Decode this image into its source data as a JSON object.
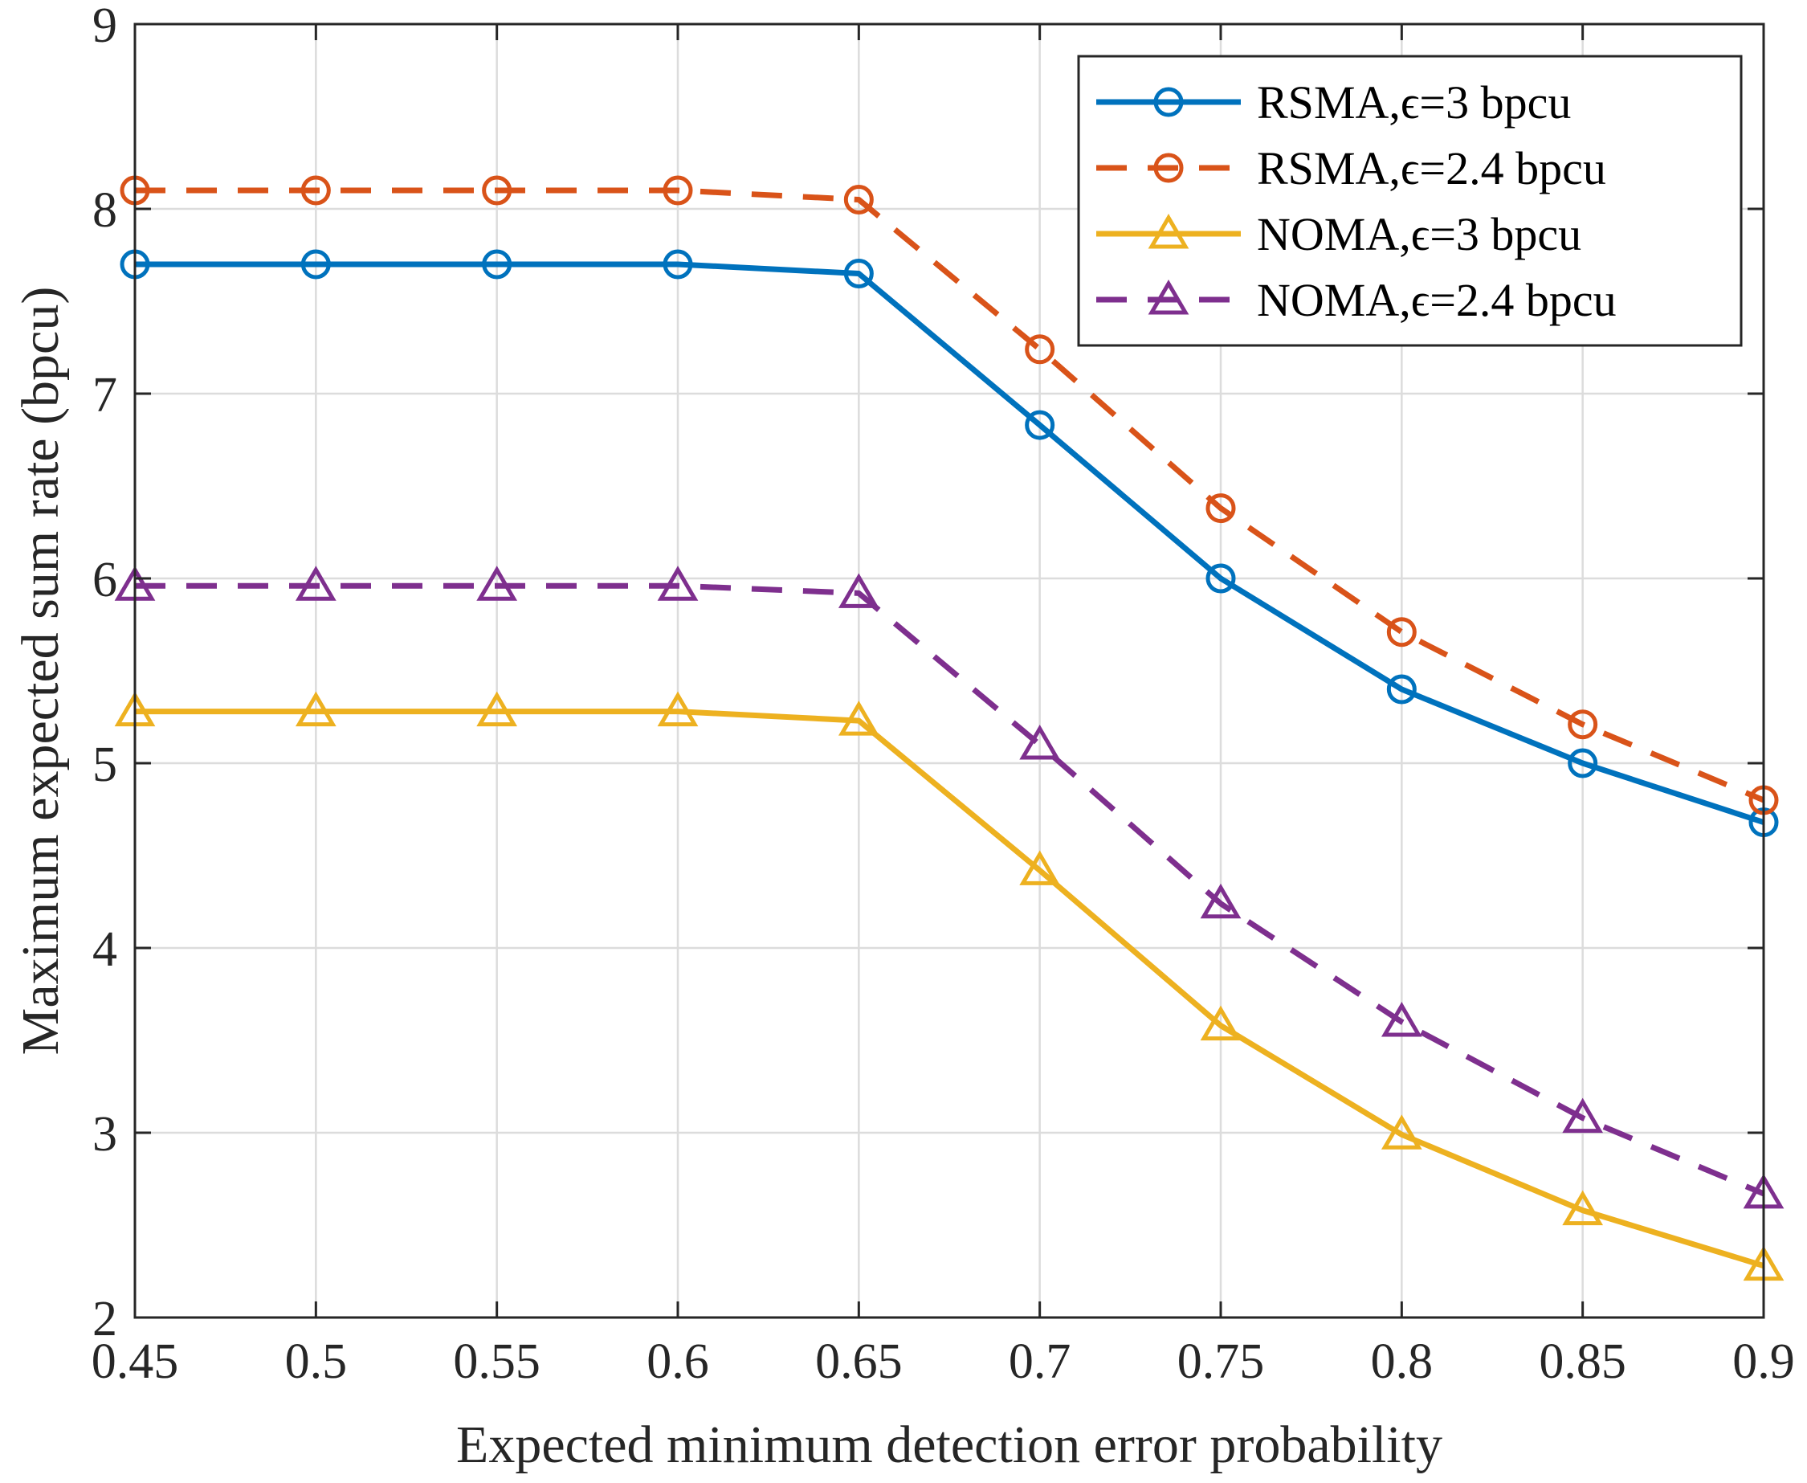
{
  "chart_data": {
    "type": "line",
    "title": "",
    "xlabel": "Expected minimum detection error probability",
    "ylabel": "Maximum expected sum rate (bpcu)",
    "x": [
      0.45,
      0.5,
      0.55,
      0.6,
      0.65,
      0.7,
      0.75,
      0.8,
      0.85,
      0.9
    ],
    "x_tick_labels": [
      "0.45",
      "0.5",
      "0.55",
      "0.6",
      "0.65",
      "0.7",
      "0.75",
      "0.8",
      "0.85",
      "0.9"
    ],
    "y_ticks": [
      2,
      3,
      4,
      5,
      6,
      7,
      8,
      9
    ],
    "y_tick_labels": [
      "2",
      "3",
      "4",
      "5",
      "6",
      "7",
      "8",
      "9"
    ],
    "xlim": [
      0.45,
      0.9
    ],
    "ylim": [
      2,
      9
    ],
    "grid": true,
    "legend_position": "top-right",
    "series": [
      {
        "name": "RSMA,ϵ=3 bpcu",
        "color": "#0072BD",
        "line_style": "solid",
        "marker": "circle",
        "values": [
          7.7,
          7.7,
          7.7,
          7.7,
          7.65,
          6.83,
          6.0,
          5.4,
          5.0,
          4.68
        ]
      },
      {
        "name": "RSMA,ϵ=2.4 bpcu",
        "color": "#D95319",
        "line_style": "dashed",
        "marker": "circle",
        "values": [
          8.1,
          8.1,
          8.1,
          8.1,
          8.05,
          7.24,
          6.38,
          5.71,
          5.21,
          4.8
        ]
      },
      {
        "name": "NOMA,ϵ=3 bpcu",
        "color": "#EDB120",
        "line_style": "solid",
        "marker": "triangle",
        "values": [
          5.28,
          5.28,
          5.28,
          5.28,
          5.23,
          4.42,
          3.58,
          2.99,
          2.58,
          2.28
        ]
      },
      {
        "name": "NOMA,ϵ=2.4 bpcu",
        "color": "#7E2F8E",
        "line_style": "dashed",
        "marker": "triangle",
        "values": [
          5.96,
          5.96,
          5.96,
          5.96,
          5.92,
          5.1,
          4.24,
          3.6,
          3.08,
          2.67
        ]
      }
    ]
  }
}
